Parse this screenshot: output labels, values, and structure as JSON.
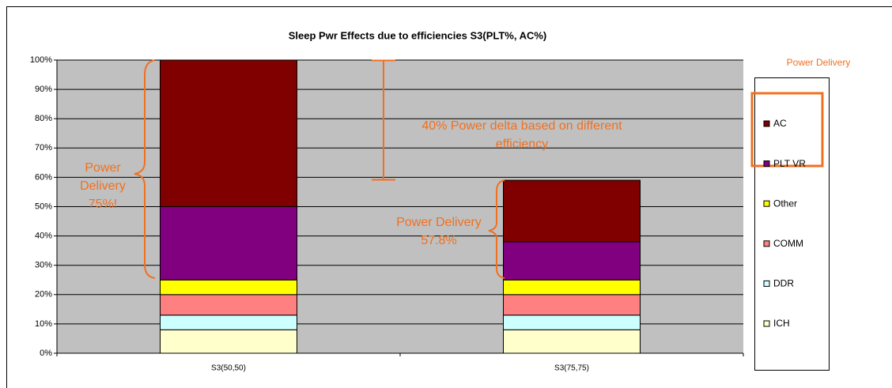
{
  "chart_data": {
    "type": "stacked_bar",
    "title": "Sleep Pwr Effects due to efficiencies S3(PLT%, AC%)",
    "categories": [
      "S3(50,50)",
      "S3(75,75)"
    ],
    "series": [
      {
        "name": "ICH",
        "color": "#FFFFCC",
        "values": [
          8,
          8
        ]
      },
      {
        "name": "DDR",
        "color": "#CCFFFF",
        "values": [
          5,
          5
        ]
      },
      {
        "name": "COMM",
        "color": "#FF8080",
        "values": [
          7,
          7
        ]
      },
      {
        "name": "Other",
        "color": "#FFFF00",
        "values": [
          5,
          5
        ]
      },
      {
        "name": "PLT VR",
        "color": "#800080",
        "values": [
          25,
          13
        ]
      },
      {
        "name": "AC",
        "color": "#800000",
        "values": [
          50,
          21
        ]
      }
    ],
    "ylim": [
      0,
      100
    ],
    "yticks": [
      {
        "value": 0,
        "label": "0%"
      },
      {
        "value": 10,
        "label": "10%"
      },
      {
        "value": 20,
        "label": "20%"
      },
      {
        "value": 30,
        "label": "30%"
      },
      {
        "value": 40,
        "label": "40%"
      },
      {
        "value": 50,
        "label": "50%"
      },
      {
        "value": 60,
        "label": "60%"
      },
      {
        "value": 70,
        "label": "70%"
      },
      {
        "value": 80,
        "label": "80%"
      },
      {
        "value": 90,
        "label": "90%"
      },
      {
        "value": 100,
        "label": "100%"
      }
    ],
    "grid": true,
    "legend_title": "Power Delivery",
    "annotations": [
      {
        "lines": [
          "40% Power delta based on different",
          "efficiency"
        ]
      },
      {
        "lines": [
          "Power",
          "Delivery",
          "75%!"
        ]
      },
      {
        "lines": [
          "Power Delivery",
          "57.8%"
        ]
      }
    ]
  }
}
